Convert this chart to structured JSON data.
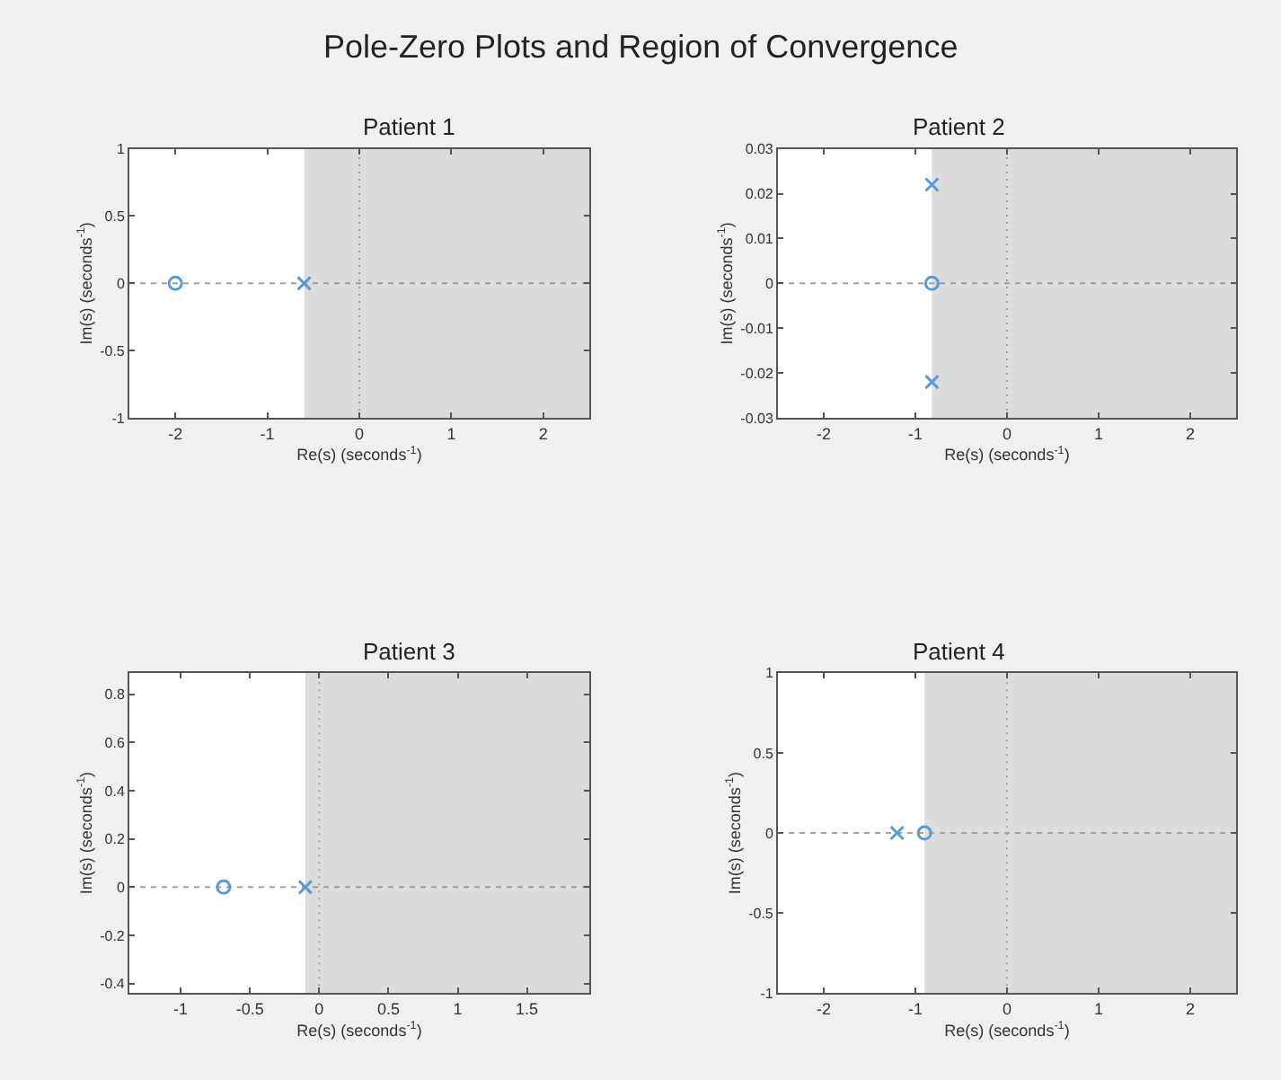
{
  "chart_data": [
    {
      "type": "other",
      "title": "Pole-Zero Plots and Region of Convergence"
    },
    {
      "type": "scatter",
      "title": "Patient 1",
      "xlabel": "Re(s) (seconds$^{-1}$)",
      "ylabel": "Im(s) (seconds$^{-1}$)",
      "xlim": [
        -2.5,
        2.5
      ],
      "xticks": [
        -2,
        -1,
        0,
        1,
        2
      ],
      "ylim": [
        -1,
        1
      ],
      "yticks": [
        -1,
        -0.5,
        0,
        0.5,
        1
      ],
      "grid": false,
      "series": [
        {
          "marker": "circle",
          "color": "#5b9bd5",
          "x": [
            -2
          ],
          "values": [
            0
          ]
        },
        {
          "marker": "cross",
          "color": "#5b9bd5",
          "x": [
            -0.6
          ],
          "values": [
            0
          ]
        }
      ],
      "bands": [
        {
          "axis": "x",
          "from": -0.6,
          "to": 2.5,
          "color": "#dcdcdc"
        }
      ],
      "ref_lines": [
        {
          "axis": "x",
          "value": 0,
          "color": "#a0a0a0",
          "line_style": "dotted"
        },
        {
          "axis": "y",
          "value": 0,
          "color": "#a0a0a0",
          "line_style": "dashed"
        }
      ]
    },
    {
      "type": "scatter",
      "title": "Patient 2",
      "xlabel": "Re(s) (seconds$^{-1}$)",
      "ylabel": "Im(s) (seconds$^{-1}$)",
      "xlim": [
        -2.5,
        2.5
      ],
      "xticks": [
        -2,
        -1,
        0,
        1,
        2
      ],
      "ylim": [
        -0.03,
        0.03
      ],
      "yticks": [
        -0.03,
        -0.02,
        -0.01,
        0,
        0.01,
        0.02,
        0.03
      ],
      "grid": false,
      "series": [
        {
          "marker": "circle",
          "color": "#5b9bd5",
          "x": [
            -0.82
          ],
          "values": [
            0
          ]
        },
        {
          "marker": "cross",
          "color": "#5b9bd5",
          "x": [
            -0.82,
            -0.82
          ],
          "values": [
            0.022,
            -0.022
          ]
        }
      ],
      "bands": [
        {
          "axis": "x",
          "from": -0.82,
          "to": 2.5,
          "color": "#dcdcdc"
        }
      ],
      "ref_lines": [
        {
          "axis": "x",
          "value": 0,
          "color": "#a0a0a0",
          "line_style": "dotted"
        },
        {
          "axis": "y",
          "value": 0,
          "color": "#a0a0a0",
          "line_style": "dashed"
        }
      ]
    },
    {
      "type": "scatter",
      "title": "Patient 3",
      "xlabel": "Re(s) (seconds$^{-1}$)",
      "ylabel": "Im(s) (seconds$^{-1}$)",
      "xlim": [
        -1.37,
        1.95
      ],
      "xticks": [
        -1,
        -0.5,
        0,
        0.5,
        1,
        1.5
      ],
      "ylim": [
        -0.44,
        0.89
      ],
      "yticks": [
        -0.4,
        -0.2,
        0,
        0.2,
        0.4,
        0.6,
        0.8
      ],
      "grid": false,
      "series": [
        {
          "marker": "circle",
          "color": "#5b9bd5",
          "x": [
            -0.69
          ],
          "values": [
            0
          ]
        },
        {
          "marker": "cross",
          "color": "#5b9bd5",
          "x": [
            -0.1
          ],
          "values": [
            0
          ]
        }
      ],
      "bands": [
        {
          "axis": "x",
          "from": -0.1,
          "to": 1.95,
          "color": "#dcdcdc"
        }
      ],
      "ref_lines": [
        {
          "axis": "x",
          "value": 0,
          "color": "#a0a0a0",
          "line_style": "dotted"
        },
        {
          "axis": "y",
          "value": 0,
          "color": "#a0a0a0",
          "line_style": "dashed"
        }
      ]
    },
    {
      "type": "scatter",
      "title": "Patient 4",
      "xlabel": "Re(s) (seconds$^{-1}$)",
      "ylabel": "Im(s) (seconds$^{-1}$)",
      "xlim": [
        -2.5,
        2.5
      ],
      "xticks": [
        -2,
        -1,
        0,
        1,
        2
      ],
      "ylim": [
        -1,
        1
      ],
      "yticks": [
        -1,
        -0.5,
        0,
        0.5,
        1
      ],
      "grid": false,
      "series": [
        {
          "marker": "circle",
          "color": "#5b9bd5",
          "x": [
            -0.9
          ],
          "values": [
            0
          ]
        },
        {
          "marker": "cross",
          "color": "#5b9bd5",
          "x": [
            -1.2
          ],
          "values": [
            0
          ]
        }
      ],
      "bands": [
        {
          "axis": "x",
          "from": -0.9,
          "to": 2.5,
          "color": "#dcdcdc"
        }
      ],
      "ref_lines": [
        {
          "axis": "x",
          "value": 0,
          "color": "#a0a0a0",
          "line_style": "dotted"
        },
        {
          "axis": "y",
          "value": 0,
          "color": "#a0a0a0",
          "line_style": "dashed"
        }
      ]
    }
  ]
}
